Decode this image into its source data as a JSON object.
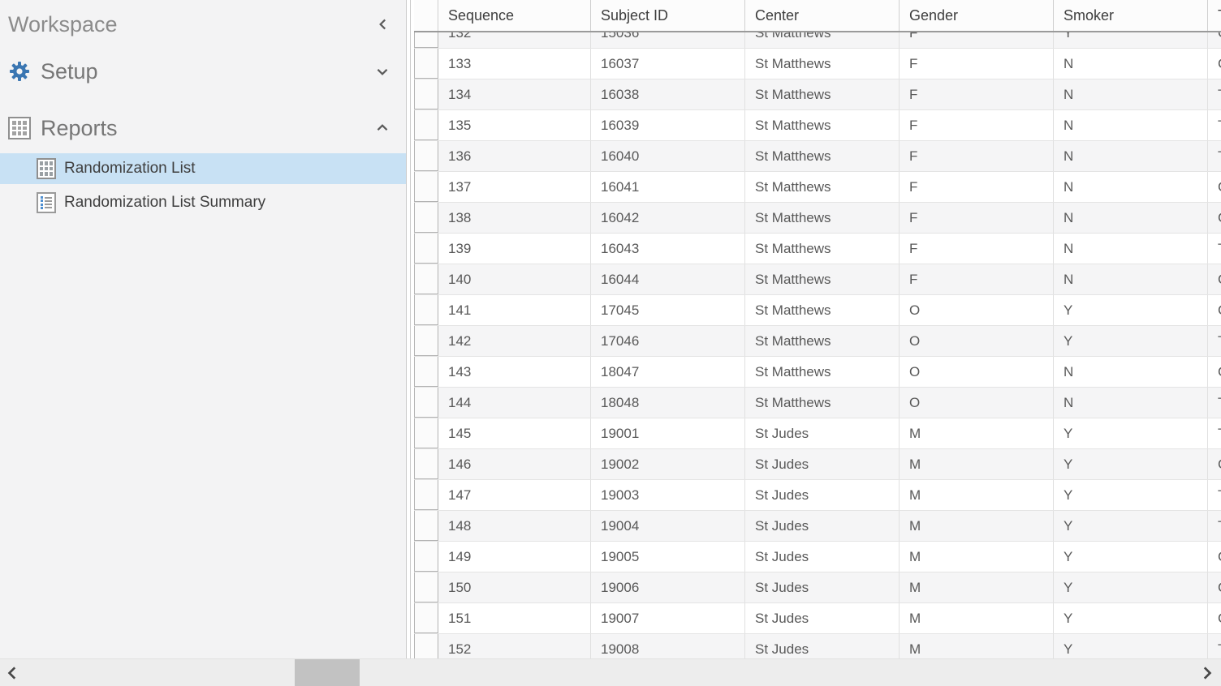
{
  "sidebar": {
    "workspace_label": "Workspace",
    "sections": [
      {
        "label": "Setup",
        "icon": "gear-icon",
        "chevron": "down",
        "expanded": false
      },
      {
        "label": "Reports",
        "icon": "grid-icon",
        "chevron": "up",
        "expanded": true
      }
    ],
    "report_items": [
      {
        "label": "Randomization List",
        "icon": "table-icon",
        "selected": true
      },
      {
        "label": "Randomization List Summary",
        "icon": "list-icon",
        "selected": false
      }
    ]
  },
  "table": {
    "columns": [
      "",
      "Sequence",
      "Subject ID",
      "Center",
      "Gender",
      "Smoker",
      "T"
    ],
    "row_keys": [
      "sequence",
      "subject_id",
      "center",
      "gender",
      "smoker",
      "treatment"
    ],
    "rows": [
      {
        "sequence": "132",
        "subject_id": "15036",
        "center": "St Matthews",
        "gender": "F",
        "smoker": "Y",
        "treatment": "C"
      },
      {
        "sequence": "133",
        "subject_id": "16037",
        "center": "St Matthews",
        "gender": "F",
        "smoker": "N",
        "treatment": "C"
      },
      {
        "sequence": "134",
        "subject_id": "16038",
        "center": "St Matthews",
        "gender": "F",
        "smoker": "N",
        "treatment": "T"
      },
      {
        "sequence": "135",
        "subject_id": "16039",
        "center": "St Matthews",
        "gender": "F",
        "smoker": "N",
        "treatment": "T"
      },
      {
        "sequence": "136",
        "subject_id": "16040",
        "center": "St Matthews",
        "gender": "F",
        "smoker": "N",
        "treatment": "T"
      },
      {
        "sequence": "137",
        "subject_id": "16041",
        "center": "St Matthews",
        "gender": "F",
        "smoker": "N",
        "treatment": "C"
      },
      {
        "sequence": "138",
        "subject_id": "16042",
        "center": "St Matthews",
        "gender": "F",
        "smoker": "N",
        "treatment": "C"
      },
      {
        "sequence": "139",
        "subject_id": "16043",
        "center": "St Matthews",
        "gender": "F",
        "smoker": "N",
        "treatment": "T"
      },
      {
        "sequence": "140",
        "subject_id": "16044",
        "center": "St Matthews",
        "gender": "F",
        "smoker": "N",
        "treatment": "C"
      },
      {
        "sequence": "141",
        "subject_id": "17045",
        "center": "St Matthews",
        "gender": "O",
        "smoker": "Y",
        "treatment": "C"
      },
      {
        "sequence": "142",
        "subject_id": "17046",
        "center": "St Matthews",
        "gender": "O",
        "smoker": "Y",
        "treatment": "T"
      },
      {
        "sequence": "143",
        "subject_id": "18047",
        "center": "St Matthews",
        "gender": "O",
        "smoker": "N",
        "treatment": "C"
      },
      {
        "sequence": "144",
        "subject_id": "18048",
        "center": "St Matthews",
        "gender": "O",
        "smoker": "N",
        "treatment": "T"
      },
      {
        "sequence": "145",
        "subject_id": "19001",
        "center": "St Judes",
        "gender": "M",
        "smoker": "Y",
        "treatment": "T"
      },
      {
        "sequence": "146",
        "subject_id": "19002",
        "center": "St Judes",
        "gender": "M",
        "smoker": "Y",
        "treatment": "C"
      },
      {
        "sequence": "147",
        "subject_id": "19003",
        "center": "St Judes",
        "gender": "M",
        "smoker": "Y",
        "treatment": "T"
      },
      {
        "sequence": "148",
        "subject_id": "19004",
        "center": "St Judes",
        "gender": "M",
        "smoker": "Y",
        "treatment": "T"
      },
      {
        "sequence": "149",
        "subject_id": "19005",
        "center": "St Judes",
        "gender": "M",
        "smoker": "Y",
        "treatment": "C"
      },
      {
        "sequence": "150",
        "subject_id": "19006",
        "center": "St Judes",
        "gender": "M",
        "smoker": "Y",
        "treatment": "C"
      },
      {
        "sequence": "151",
        "subject_id": "19007",
        "center": "St Judes",
        "gender": "M",
        "smoker": "Y",
        "treatment": "C"
      },
      {
        "sequence": "152",
        "subject_id": "19008",
        "center": "St Judes",
        "gender": "M",
        "smoker": "Y",
        "treatment": "T"
      }
    ]
  },
  "colors": {
    "selection_blue": "#c8e1f4",
    "gear_blue": "#3a76b2",
    "sidebar_bg": "#f3f3f4",
    "alt_row_bg": "#f5f5f6"
  }
}
